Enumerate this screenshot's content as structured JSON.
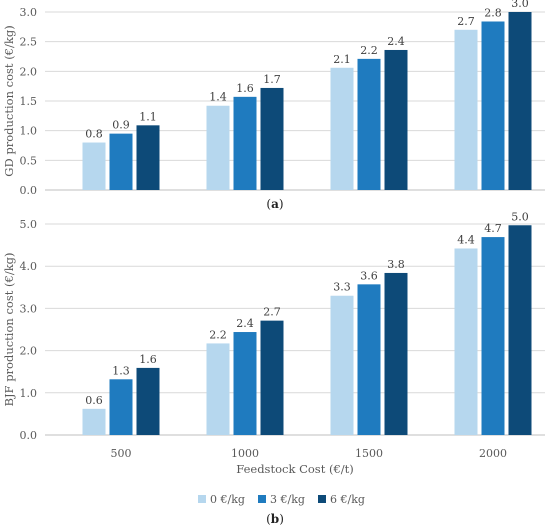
{
  "colors": [
    "#b6d7ee",
    "#1f7bbf",
    "#0d4a78"
  ],
  "legend": [
    "0 €/kg",
    "3 €/kg",
    "6 €/kg"
  ],
  "chart_data": [
    {
      "type": "bar",
      "panel_label": "a",
      "ylabel": "GD production cost (€/kg)",
      "ylim": [
        0,
        3.0
      ],
      "yticks": [
        "0.0",
        "0.5",
        "1.0",
        "1.5",
        "2.0",
        "2.5",
        "3.0"
      ],
      "grid": true,
      "categories": [
        "500",
        "1000",
        "1500",
        "2000"
      ],
      "series": [
        {
          "name": "0 €/kg",
          "values": [
            0.8,
            1.42,
            2.06,
            2.7
          ],
          "labels": [
            "0.8",
            "1.4",
            "2.1",
            "2.7"
          ]
        },
        {
          "name": "3 €/kg",
          "values": [
            0.95,
            1.57,
            2.21,
            2.84
          ],
          "labels": [
            "0.9",
            "1.6",
            "2.2",
            "2.8"
          ]
        },
        {
          "name": "6 €/kg",
          "values": [
            1.09,
            1.72,
            2.36,
            3.0
          ],
          "labels": [
            "1.1",
            "1.7",
            "2.4",
            "3.0"
          ]
        }
      ]
    },
    {
      "type": "bar",
      "panel_label": "b",
      "ylabel": "BJF production cost (€/kg)",
      "xlabel": "Feedstock Cost (€/t)",
      "ylim": [
        0,
        5.0
      ],
      "yticks": [
        "0.0",
        "1.0",
        "2.0",
        "3.0",
        "4.0",
        "5.0"
      ],
      "grid": true,
      "categories": [
        "500",
        "1000",
        "1500",
        "2000"
      ],
      "series": [
        {
          "name": "0 €/kg",
          "values": [
            0.62,
            2.17,
            3.3,
            4.42
          ],
          "labels": [
            "0.6",
            "2.2",
            "3.3",
            "4.4"
          ]
        },
        {
          "name": "3 €/kg",
          "values": [
            1.32,
            2.44,
            3.57,
            4.69
          ],
          "labels": [
            "1.3",
            "2.4",
            "3.6",
            "4.7"
          ]
        },
        {
          "name": "6 €/kg",
          "values": [
            1.59,
            2.71,
            3.84,
            4.97
          ],
          "labels": [
            "1.6",
            "2.7",
            "3.8",
            "5.0"
          ]
        }
      ]
    }
  ]
}
